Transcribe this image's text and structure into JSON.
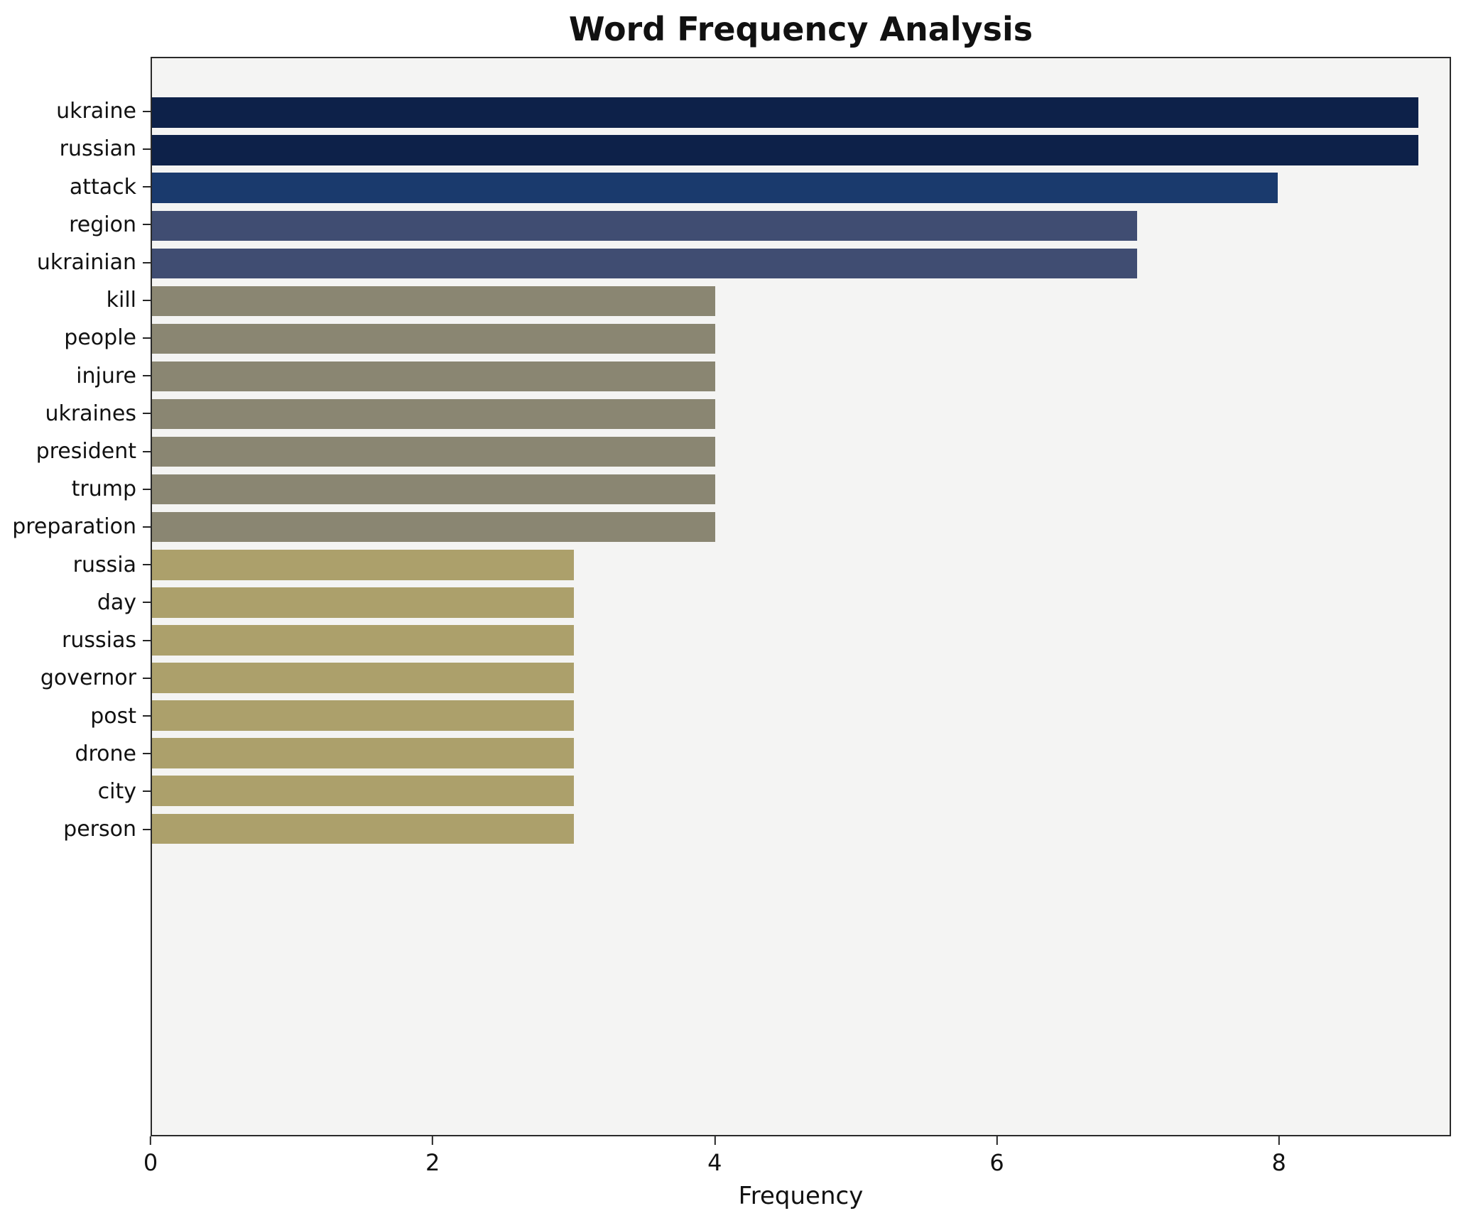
{
  "chart_data": {
    "type": "bar",
    "orientation": "horizontal",
    "title": "Word Frequency Analysis",
    "xlabel": "Frequency",
    "ylabel": "",
    "categories": [
      "ukraine",
      "russian",
      "attack",
      "region",
      "ukrainian",
      "kill",
      "people",
      "injure",
      "ukraines",
      "president",
      "trump",
      "preparation",
      "russia",
      "day",
      "russias",
      "governor",
      "post",
      "drone",
      "city",
      "person"
    ],
    "values": [
      9,
      9,
      8,
      7,
      7,
      4,
      4,
      4,
      4,
      4,
      4,
      4,
      3,
      3,
      3,
      3,
      3,
      3,
      3,
      3
    ],
    "bar_colors": [
      "#0d2149",
      "#0d2149",
      "#1a3a6d",
      "#404d72",
      "#404d72",
      "#8a8672",
      "#8a8672",
      "#8a8672",
      "#8a8672",
      "#8a8672",
      "#8a8672",
      "#8a8672",
      "#aca06b",
      "#aca06b",
      "#aca06b",
      "#aca06b",
      "#aca06b",
      "#aca06b",
      "#aca06b",
      "#aca06b"
    ],
    "xlim": [
      0,
      9.22
    ],
    "x_ticks": [
      0,
      2,
      4,
      6,
      8
    ],
    "grid": false,
    "legend": "none",
    "plot_background": "#f4f4f3",
    "figure_background": "#ffffff"
  }
}
